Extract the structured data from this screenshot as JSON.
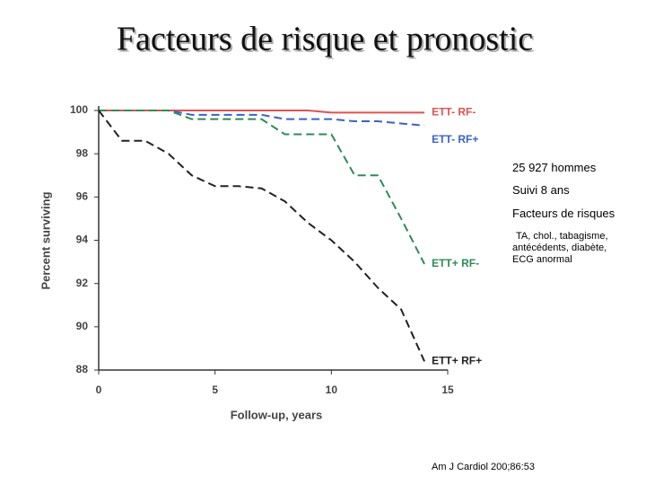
{
  "title": "Facteurs de risque et pronostic",
  "chart_data": {
    "type": "line",
    "y_label": "Percent surviving",
    "x_label": "Follow-up, years",
    "x": [
      0,
      1,
      2,
      3,
      4,
      5,
      6,
      7,
      8,
      9,
      10,
      11,
      12,
      13,
      14
    ],
    "xlim": [
      0,
      15
    ],
    "xticks": [
      0,
      5,
      10,
      15
    ],
    "ylim": [
      88,
      100
    ],
    "yticks": [
      88,
      90,
      92,
      94,
      96,
      98,
      100
    ],
    "series": [
      {
        "name": "ETT- RF-",
        "color": "#e05252",
        "style": "solid",
        "values": [
          100,
          100,
          100,
          100,
          100,
          100,
          100,
          100,
          100,
          100,
          99.9,
          99.9,
          99.9,
          99.9,
          99.9
        ]
      },
      {
        "name": "ETT- RF+",
        "color": "#3a62c9",
        "style": "dashed",
        "values": [
          100,
          100,
          100,
          100,
          99.8,
          99.8,
          99.8,
          99.8,
          99.6,
          99.6,
          99.6,
          99.5,
          99.5,
          99.4,
          99.3
        ]
      },
      {
        "name": "ETT+ RF-",
        "color": "#2e8b57",
        "style": "dashed",
        "values": [
          100,
          100,
          100,
          100,
          99.6,
          99.6,
          99.6,
          99.6,
          98.9,
          98.9,
          98.9,
          97.0,
          97.0,
          95.0,
          92.9
        ]
      },
      {
        "name": "ETT+ RF+",
        "color": "#222222",
        "style": "dashed",
        "values": [
          100,
          98.6,
          98.6,
          98.0,
          97.0,
          96.5,
          96.5,
          96.4,
          95.8,
          94.8,
          94.0,
          93.0,
          91.8,
          90.8,
          88.4
        ]
      }
    ]
  },
  "notes": [
    "25 927 hommes",
    "Suivi 8 ans",
    "Facteurs de risques",
    "TA, chol., tabagisme, antécédents, diabète, ECG anormal"
  ],
  "source": "Am J Cardiol 200;86:53"
}
